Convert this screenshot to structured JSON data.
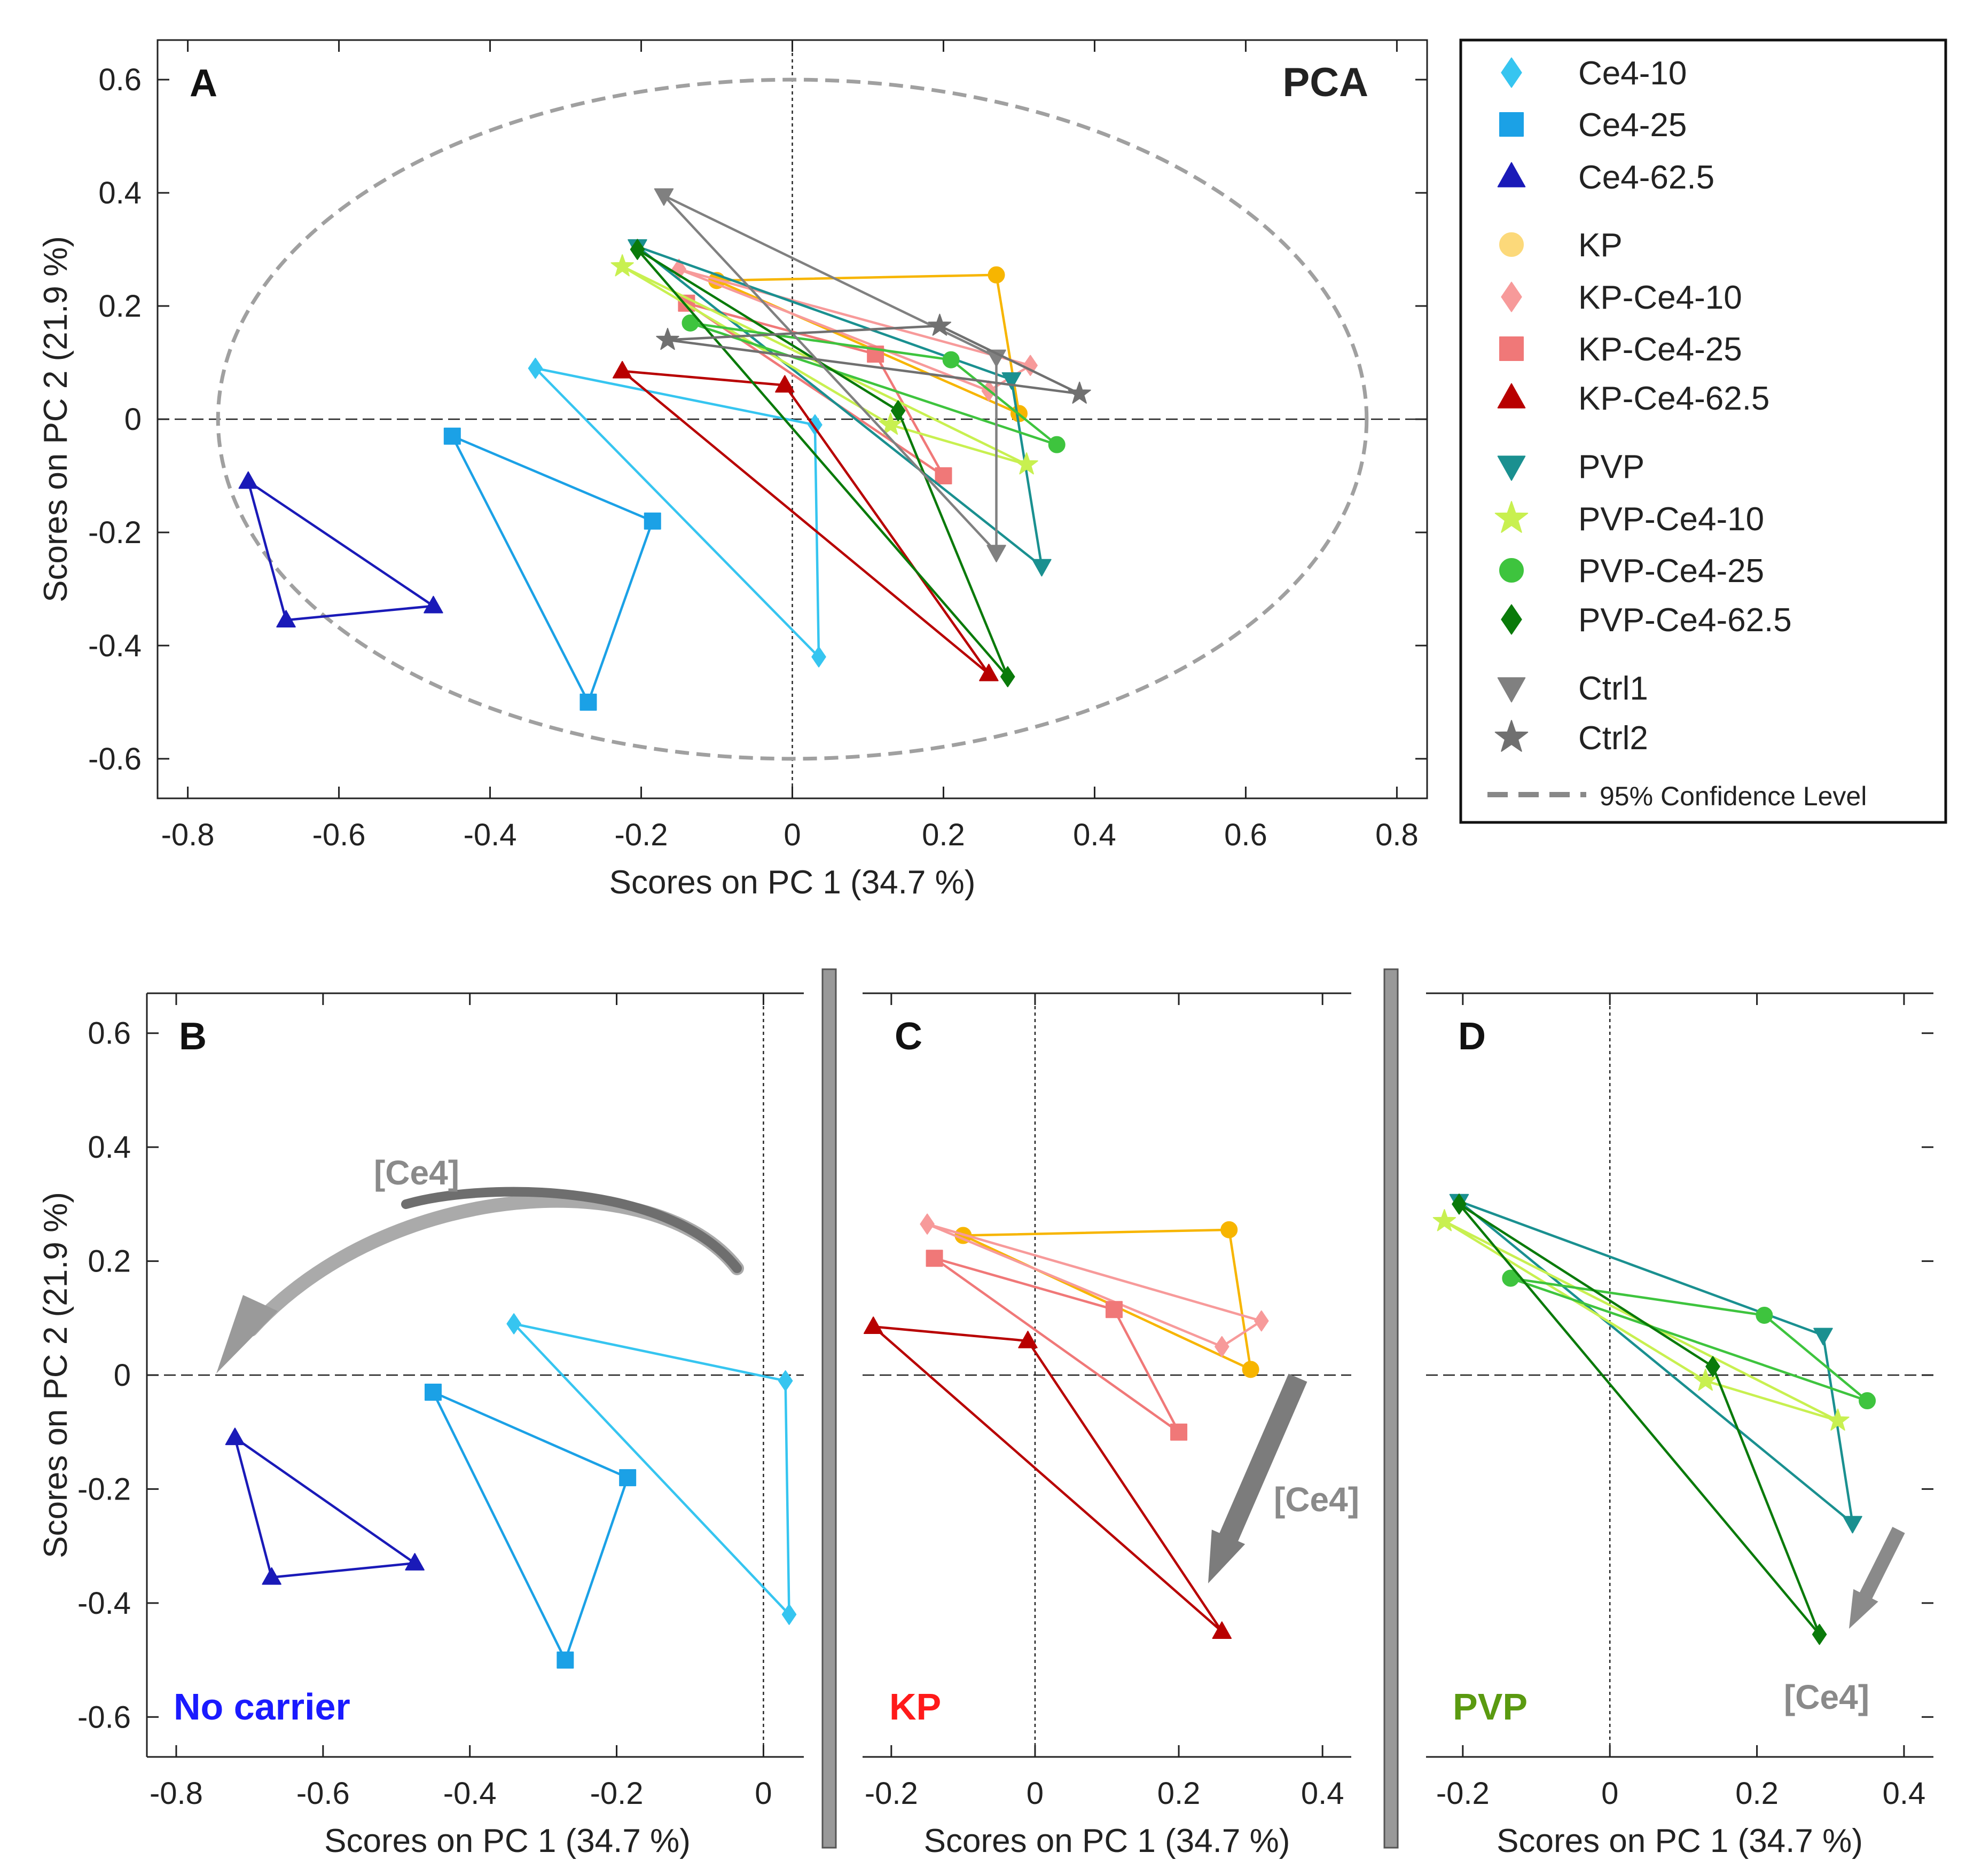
{
  "chart_data": {
    "type": "scatter",
    "common": {
      "xlabel": "Scores on PC 1 (34.7 %)",
      "ylabel": "Scores on PC 2 (21.9 %)"
    },
    "series": [
      {
        "key": "ce10",
        "name": "Ce4-10",
        "color": "#36c5f0",
        "marker": "diamond",
        "points": [
          [
            -0.34,
            0.09
          ],
          [
            0.03,
            -0.01
          ],
          [
            0.035,
            -0.42
          ]
        ]
      },
      {
        "key": "ce25",
        "name": "Ce4-25",
        "color": "#1ba1e6",
        "marker": "square",
        "points": [
          [
            -0.45,
            -0.03
          ],
          [
            -0.185,
            -0.18
          ],
          [
            -0.27,
            -0.5
          ]
        ]
      },
      {
        "key": "ce62",
        "name": "Ce4-62.5",
        "color": "#1a1ab8",
        "marker": "triangle",
        "points": [
          [
            -0.72,
            -0.11
          ],
          [
            -0.475,
            -0.33
          ],
          [
            -0.67,
            -0.355
          ]
        ]
      },
      {
        "key": "kp",
        "name": "KP",
        "color": "#f7b500",
        "marker": "circle",
        "points": [
          [
            -0.1,
            0.245
          ],
          [
            0.27,
            0.255
          ],
          [
            0.3,
            0.01
          ]
        ]
      },
      {
        "key": "kp10",
        "name": "KP-Ce4-10",
        "color": "#f79a9a",
        "marker": "diamond",
        "points": [
          [
            -0.15,
            0.265
          ],
          [
            0.315,
            0.095
          ],
          [
            0.26,
            0.05
          ]
        ]
      },
      {
        "key": "kp25",
        "name": "KP-Ce4-25",
        "color": "#f07878",
        "marker": "square",
        "points": [
          [
            -0.14,
            0.205
          ],
          [
            0.11,
            0.115
          ],
          [
            0.2,
            -0.1
          ]
        ]
      },
      {
        "key": "kp62",
        "name": "KP-Ce4-62.5",
        "color": "#b80000",
        "marker": "triangle",
        "points": [
          [
            -0.225,
            0.085
          ],
          [
            -0.01,
            0.06
          ],
          [
            0.26,
            -0.45
          ]
        ]
      },
      {
        "key": "pvp",
        "name": "PVP",
        "color": "#1a9090",
        "marker": "triangle-down",
        "points": [
          [
            -0.205,
            0.305
          ],
          [
            0.29,
            0.07
          ],
          [
            0.33,
            -0.26
          ]
        ]
      },
      {
        "key": "pvp10",
        "name": "PVP-Ce4-10",
        "color": "#c8f050",
        "marker": "star",
        "points": [
          [
            -0.225,
            0.27
          ],
          [
            0.13,
            -0.01
          ],
          [
            0.31,
            -0.08
          ]
        ]
      },
      {
        "key": "pvp25",
        "name": "PVP-Ce4-25",
        "color": "#3ec43e",
        "marker": "circle",
        "points": [
          [
            -0.135,
            0.17
          ],
          [
            0.21,
            0.105
          ],
          [
            0.35,
            -0.045
          ]
        ]
      },
      {
        "key": "pvp62",
        "name": "PVP-Ce4-62.5",
        "color": "#0a7a0a",
        "marker": "diamond",
        "points": [
          [
            -0.205,
            0.3
          ],
          [
            0.14,
            0.015
          ],
          [
            0.285,
            -0.455
          ]
        ]
      },
      {
        "key": "ctrl1",
        "name": "Ctrl1",
        "color": "#808080",
        "marker": "triangle-down",
        "points": [
          [
            -0.17,
            0.395
          ],
          [
            0.27,
            0.11
          ],
          [
            0.27,
            -0.235
          ]
        ]
      },
      {
        "key": "ctrl2",
        "name": "Ctrl2",
        "color": "#707070",
        "marker": "star",
        "points": [
          [
            -0.165,
            0.14
          ],
          [
            0.195,
            0.165
          ],
          [
            0.38,
            0.045
          ]
        ]
      }
    ],
    "confidence_ellipse": {
      "label": "95% Confidence Level",
      "x_radius": 0.76,
      "y_radius": 0.6,
      "color": "#a0a0a0"
    },
    "panels": [
      {
        "key": "A",
        "label": "A",
        "annotation": "PCA",
        "series": [
          "ce10",
          "ce25",
          "ce62",
          "kp",
          "kp10",
          "kp25",
          "kp62",
          "pvp",
          "pvp10",
          "pvp25",
          "pvp62",
          "ctrl1",
          "ctrl2"
        ],
        "xlim": [
          -0.84,
          0.84
        ],
        "ylim": [
          -0.67,
          0.67
        ],
        "xticks": [
          "-0.8",
          "-0.6",
          "-0.4",
          "-0.2",
          "0",
          "0.2",
          "0.4",
          "0.6",
          "0.8"
        ],
        "yticks": [
          "0.6",
          "0.4",
          "0.2",
          "0",
          "-0.2",
          "-0.4",
          "-0.6"
        ],
        "show_ellipse": true
      },
      {
        "key": "B",
        "label": "B",
        "group_label": "No carrier",
        "group_color": "#1a1aff",
        "arrow_label": "[Ce4]",
        "series": [
          "ce10",
          "ce25",
          "ce62"
        ],
        "xlim": [
          -0.84,
          0.055
        ],
        "ylim": [
          -0.67,
          0.67
        ],
        "xticks": [
          "-0.8",
          "-0.6",
          "-0.4",
          "-0.2",
          "0"
        ],
        "yticks": [
          "0.6",
          "0.4",
          "0.2",
          "0",
          "-0.2",
          "-0.4",
          "-0.6"
        ]
      },
      {
        "key": "C",
        "label": "C",
        "group_label": "KP",
        "group_color": "#ff1a1a",
        "arrow_label": "[Ce4]",
        "series": [
          "kp",
          "kp10",
          "kp25",
          "kp62"
        ],
        "xlim": [
          -0.24,
          0.44
        ],
        "ylim": [
          -0.67,
          0.67
        ],
        "xticks": [
          "-0.2",
          "0",
          "0.2",
          "0.4"
        ]
      },
      {
        "key": "D",
        "label": "D",
        "group_label": "PVP",
        "group_color": "#5a9a10",
        "arrow_label": "[Ce4]",
        "series": [
          "pvp",
          "pvp10",
          "pvp25",
          "pvp62"
        ],
        "xlim": [
          -0.25,
          0.44
        ],
        "ylim": [
          -0.67,
          0.67
        ],
        "xticks": [
          "-0.2",
          "0",
          "0.2",
          "0.4"
        ]
      }
    ]
  }
}
